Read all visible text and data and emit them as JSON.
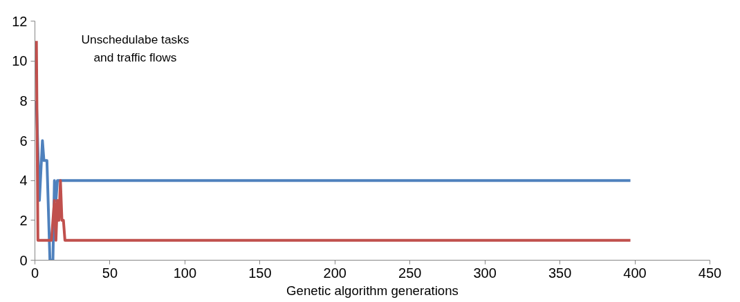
{
  "chart_data": {
    "type": "line",
    "xlabel": "Genetic algorithm generations",
    "annotations": [
      "Unschedulabe tasks\nand traffic flows"
    ],
    "xlim": [
      0,
      450
    ],
    "xticks": [
      0,
      50,
      100,
      150,
      200,
      250,
      300,
      350,
      400,
      450
    ],
    "ylim": [
      0,
      12
    ],
    "yticks": [
      0,
      2,
      4,
      6,
      8,
      10,
      12
    ],
    "grid": false,
    "marker": "none",
    "line_style": "solid",
    "series": [
      {
        "color": "#4f81bd",
        "x": [
          1,
          3,
          5,
          6,
          8,
          10,
          12,
          13,
          14,
          15,
          397
        ],
        "values": [
          8,
          3,
          6,
          5,
          5,
          0,
          0,
          4,
          3,
          4,
          4
        ]
      },
      {
        "color": "#c0504d",
        "x": [
          1,
          2,
          11,
          12,
          13,
          14,
          15,
          16,
          17,
          18,
          19,
          20,
          397
        ],
        "values": [
          11,
          1,
          1,
          2,
          3,
          1,
          3,
          2,
          4,
          2,
          2,
          1,
          1
        ]
      }
    ]
  }
}
